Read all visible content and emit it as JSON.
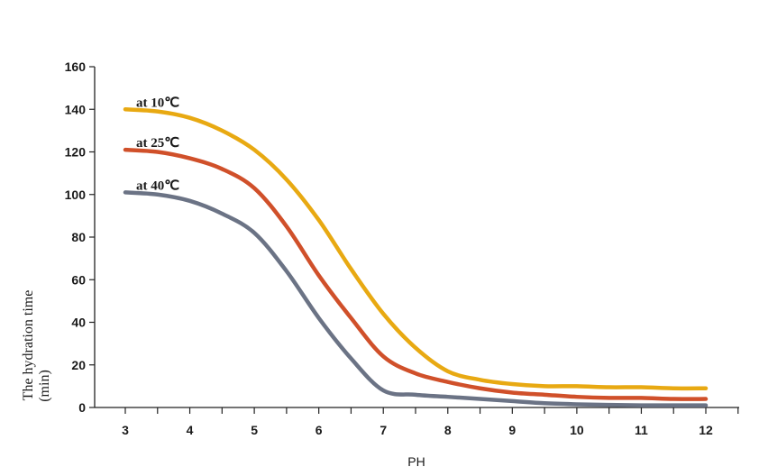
{
  "chart_data": {
    "type": "line",
    "title": "",
    "xlabel": "PH",
    "ylabel": "The hydration time (min)",
    "ylabel_lines": [
      "The hydration time",
      "(min)"
    ],
    "xlim": [
      3,
      12
    ],
    "ylim": [
      0,
      160
    ],
    "xticks": [
      3,
      4,
      5,
      6,
      7,
      8,
      9,
      10,
      11,
      12
    ],
    "yticks": [
      0,
      20,
      40,
      60,
      80,
      100,
      120,
      140,
      160
    ],
    "grid": false,
    "series": [
      {
        "name": "at 10℃",
        "color": "#E8A912",
        "x": [
          3,
          3.5,
          4,
          4.5,
          5,
          5.5,
          6,
          6.5,
          7,
          7.5,
          8,
          8.5,
          9,
          9.5,
          10,
          10.5,
          11,
          11.5,
          12
        ],
        "y": [
          140,
          139,
          136,
          130,
          121,
          107,
          88,
          65,
          44,
          28,
          17,
          13,
          11,
          10,
          10,
          9.5,
          9.5,
          9,
          9
        ]
      },
      {
        "name": "at 25℃",
        "color": "#D0502A",
        "x": [
          3,
          3.5,
          4,
          4.5,
          5,
          5.5,
          6,
          6.5,
          7,
          7.5,
          8,
          8.5,
          9,
          9.5,
          10,
          10.5,
          11,
          11.5,
          12
        ],
        "y": [
          121,
          120,
          117,
          112,
          103,
          85,
          62,
          42,
          24,
          16,
          12,
          9,
          7,
          6,
          5,
          4.5,
          4.5,
          4,
          4
        ]
      },
      {
        "name": "at 40℃",
        "color": "#6B7385",
        "x": [
          3,
          3.5,
          4,
          4.5,
          5,
          5.5,
          6,
          6.5,
          7,
          7.5,
          8,
          8.5,
          9,
          9.5,
          10,
          10.5,
          11,
          11.5,
          12
        ],
        "y": [
          101,
          100,
          97,
          91,
          82,
          64,
          42,
          23,
          8,
          6,
          5,
          4,
          3,
          2,
          1.5,
          1.2,
          1,
          1,
          1
        ]
      }
    ]
  }
}
